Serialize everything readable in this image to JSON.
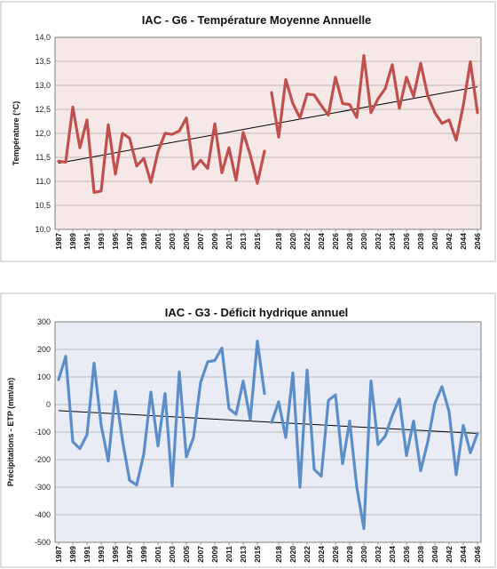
{
  "chart_data": [
    {
      "type": "line",
      "title": "IAC - G6 - Température Moyenne Annuelle",
      "ylabel": "Température (°C)",
      "xlabel": "",
      "ylim": [
        10,
        14
      ],
      "yticks": [
        "10,0",
        "10,5",
        "11,0",
        "11,5",
        "12,0",
        "12,5",
        "13,0",
        "13,5",
        "14,0"
      ],
      "xticks": [
        "1987",
        "1989",
        "1991",
        "1993",
        "1995",
        "1997",
        "1999",
        "2001",
        "2003",
        "2005",
        "2007",
        "2009",
        "2011",
        "2013",
        "2015",
        "2018",
        "2020",
        "2022",
        "2024",
        "2026",
        "2028",
        "2030",
        "2032",
        "2034",
        "2036",
        "2038",
        "2040",
        "2042",
        "2044",
        "2046"
      ],
      "background": "#f7e8e8",
      "line_color": "#c0504d",
      "trend_color": "#000000",
      "grid": true,
      "series": [
        {
          "x": [
            1987,
            1988,
            1989,
            1990,
            1991,
            1992,
            1993,
            1994,
            1995,
            1996,
            1997,
            1998,
            1999,
            2000,
            2001,
            2002,
            2003,
            2004,
            2005,
            2006,
            2007,
            2008,
            2009,
            2010,
            2011,
            2012,
            2013,
            2014,
            2015,
            2016
          ],
          "values": [
            11.42,
            11.4,
            12.55,
            11.7,
            12.28,
            10.77,
            10.8,
            12.18,
            11.15,
            12.0,
            11.9,
            11.32,
            11.48,
            10.98,
            11.62,
            12.0,
            11.98,
            12.05,
            12.32,
            11.26,
            11.44,
            11.27,
            12.2,
            11.18,
            11.7,
            11.02,
            12.02,
            11.55,
            10.96,
            11.63
          ]
        },
        {
          "x": [
            2017,
            2018,
            2019,
            2020,
            2021,
            2022,
            2023,
            2024,
            2025,
            2026,
            2027,
            2028,
            2029,
            2030,
            2031,
            2032,
            2033,
            2034,
            2035,
            2036,
            2037,
            2038,
            2039,
            2040,
            2041,
            2042,
            2043,
            2044,
            2045,
            2046
          ],
          "values": [
            12.85,
            11.92,
            13.12,
            12.62,
            12.32,
            12.82,
            12.8,
            12.58,
            12.38,
            13.17,
            12.62,
            12.6,
            12.33,
            13.62,
            12.43,
            12.72,
            12.93,
            13.43,
            12.52,
            13.17,
            12.77,
            13.46,
            12.78,
            12.43,
            12.21,
            12.28,
            11.86,
            12.58,
            13.49,
            12.43
          ]
        }
      ],
      "trend": {
        "start": 11.38,
        "end": 12.97
      }
    },
    {
      "type": "line",
      "title": "IAC - G3 - Déficit hydrique annuel",
      "ylabel": "Précipitations - ETP (mm/an)",
      "xlabel": "",
      "ylim": [
        -500,
        300
      ],
      "yticks": [
        "-500",
        "-400",
        "-300",
        "-200",
        "-100",
        "0",
        "100",
        "200",
        "300"
      ],
      "xticks": [
        "1987",
        "1989",
        "1991",
        "1993",
        "1995",
        "1997",
        "1999",
        "2001",
        "2003",
        "2005",
        "2007",
        "2009",
        "2011",
        "2013",
        "2015",
        "2018",
        "2020",
        "2022",
        "2024",
        "2026",
        "2028",
        "2030",
        "2032",
        "2034",
        "2036",
        "2038",
        "2040",
        "2042",
        "2044",
        "2046"
      ],
      "background": "#e9ecf5",
      "line_color": "#5b8ec9",
      "trend_color": "#000000",
      "grid": true,
      "series": [
        {
          "x": [
            1987,
            1988,
            1989,
            1990,
            1991,
            1992,
            1993,
            1994,
            1995,
            1996,
            1997,
            1998,
            1999,
            2000,
            2001,
            2002,
            2003,
            2004,
            2005,
            2006,
            2007,
            2008,
            2009,
            2010,
            2011,
            2012,
            2013,
            2014,
            2015,
            2016
          ],
          "values": [
            90,
            175,
            -135,
            -160,
            -110,
            150,
            -75,
            -205,
            48,
            -130,
            -275,
            -292,
            -180,
            45,
            -150,
            40,
            -295,
            118,
            -190,
            -120,
            80,
            155,
            160,
            205,
            -15,
            -35,
            85,
            -55,
            230,
            40
          ]
        },
        {
          "x": [
            2017,
            2018,
            2019,
            2020,
            2021,
            2022,
            2023,
            2024,
            2025,
            2026,
            2027,
            2028,
            2029,
            2030,
            2031,
            2032,
            2033,
            2034,
            2035,
            2036,
            2037,
            2038,
            2039,
            2040,
            2041,
            2042,
            2043,
            2044,
            2045,
            2046
          ],
          "values": [
            -65,
            10,
            -120,
            115,
            -300,
            125,
            -235,
            -260,
            15,
            35,
            -215,
            -60,
            -300,
            -450,
            85,
            -145,
            -115,
            -40,
            20,
            -185,
            -60,
            -240,
            -135,
            5,
            65,
            -25,
            -255,
            -75,
            -175,
            -105
          ]
        }
      ],
      "trend": {
        "start": -22,
        "end": -105
      }
    }
  ]
}
